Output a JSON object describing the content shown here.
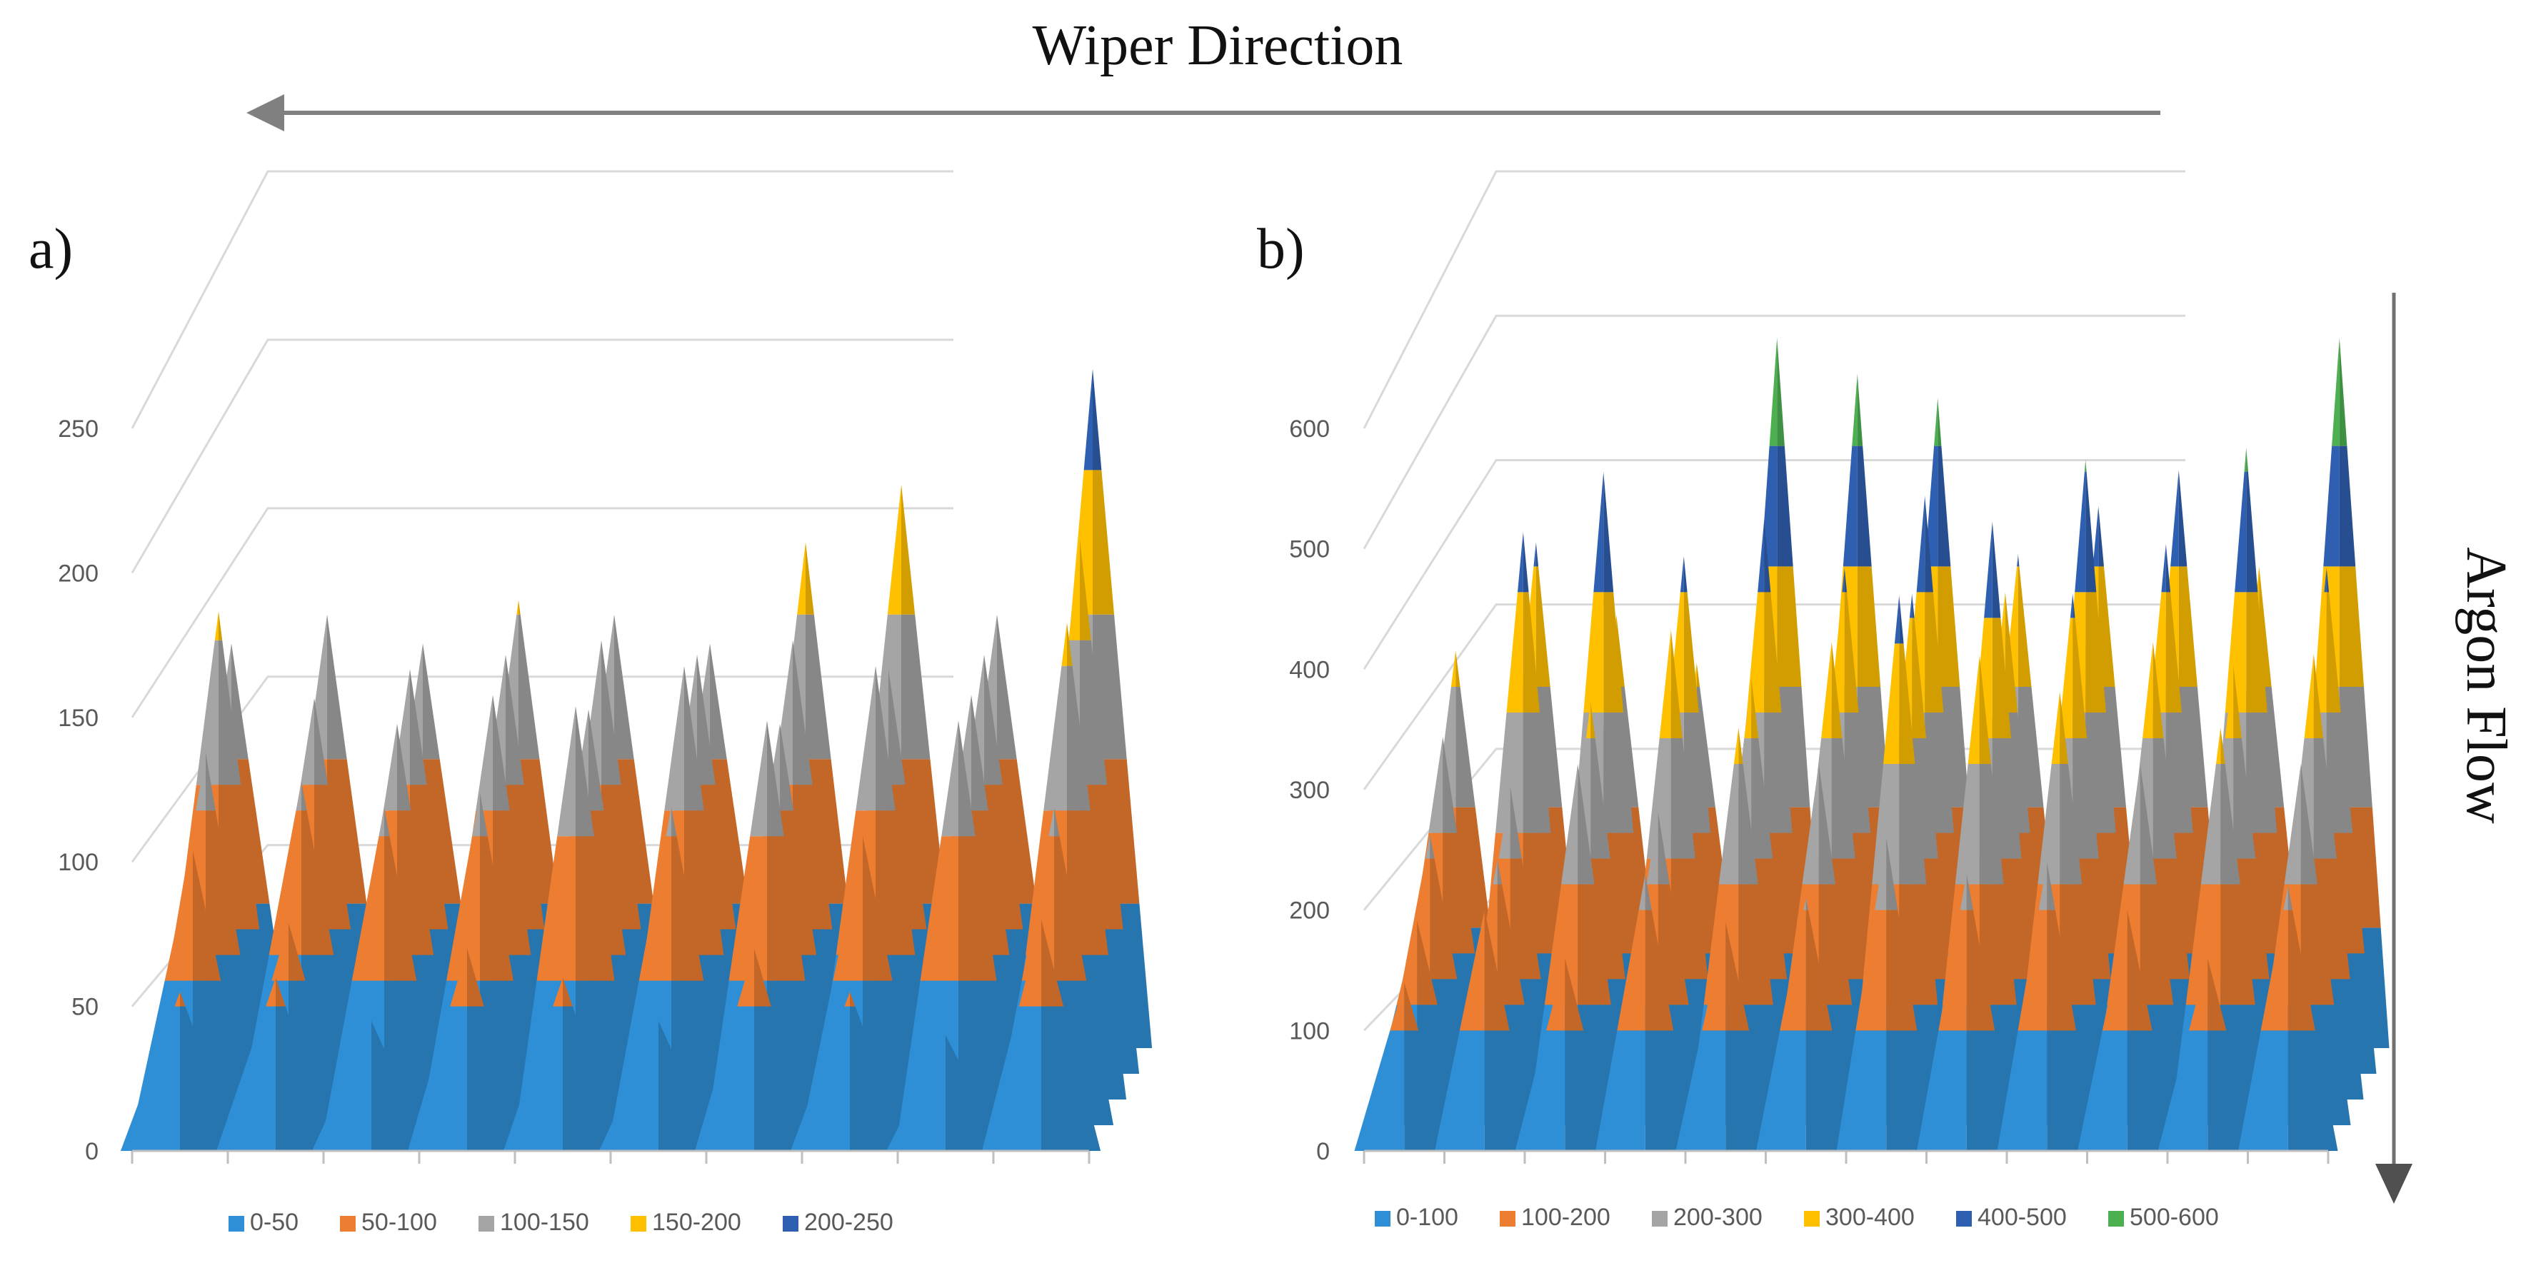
{
  "figure": {
    "top_label": "Wiper Direction",
    "side_label": "Argon Flow"
  },
  "chart_data": [
    {
      "type": "surface",
      "panel": "a)",
      "ylim": [
        0,
        250
      ],
      "yticks": [
        0,
        50,
        100,
        150,
        200,
        250
      ],
      "band_width": 50,
      "legend": [
        {
          "label": "0-50",
          "color": "#2f8fd6"
        },
        {
          "label": "50-100",
          "color": "#ed7d31"
        },
        {
          "label": "100-150",
          "color": "#a5a5a5"
        },
        {
          "label": "150-200",
          "color": "#ffc000"
        },
        {
          "label": "200-250",
          "color": "#2e5fb0"
        }
      ],
      "grid": [
        [
          140,
          150,
          140,
          155,
          150,
          140,
          175,
          195,
          150,
          235
        ],
        [
          160,
          130,
          140,
          145,
          150,
          145,
          150,
          140,
          145,
          185
        ],
        [
          120,
          110,
          130,
          140,
          135,
          150,
          130,
          150,
          140,
          165
        ],
        [
          95,
          70,
          110,
          115,
          145,
          110,
          140,
          100,
          140,
          110
        ],
        [
          55,
          60,
          45,
          70,
          60,
          45,
          70,
          55,
          40,
          80
        ]
      ]
    },
    {
      "type": "surface",
      "panel": "b)",
      "ylim": [
        0,
        600
      ],
      "yticks": [
        0,
        100,
        200,
        300,
        400,
        500,
        600
      ],
      "band_width": 100,
      "legend": [
        {
          "label": "0-100",
          "color": "#2f8fd6"
        },
        {
          "label": "100-200",
          "color": "#ed7d31"
        },
        {
          "label": "200-300",
          "color": "#a5a5a5"
        },
        {
          "label": "300-400",
          "color": "#ffc000"
        },
        {
          "label": "400-500",
          "color": "#2e5fb0"
        },
        {
          "label": "500-600",
          "color": "#4caf50"
        }
      ],
      "grid": [
        [
          330,
          420,
          360,
          320,
          590,
          560,
          540,
          410,
          450,
          480,
          400,
          590
        ],
        [
          280,
          450,
          500,
          430,
          460,
          420,
          480,
          400,
          510,
          440,
          520,
          420
        ],
        [
          220,
          260,
          330,
          390,
          350,
          380,
          420,
          480,
          420,
          380,
          360,
          370
        ],
        [
          170,
          220,
          300,
          260,
          330,
          300,
          440,
          390,
          360,
          300,
          330,
          300
        ],
        [
          140,
          200,
          160,
          230,
          190,
          210,
          260,
          230,
          240,
          200,
          160,
          220
        ]
      ]
    }
  ]
}
